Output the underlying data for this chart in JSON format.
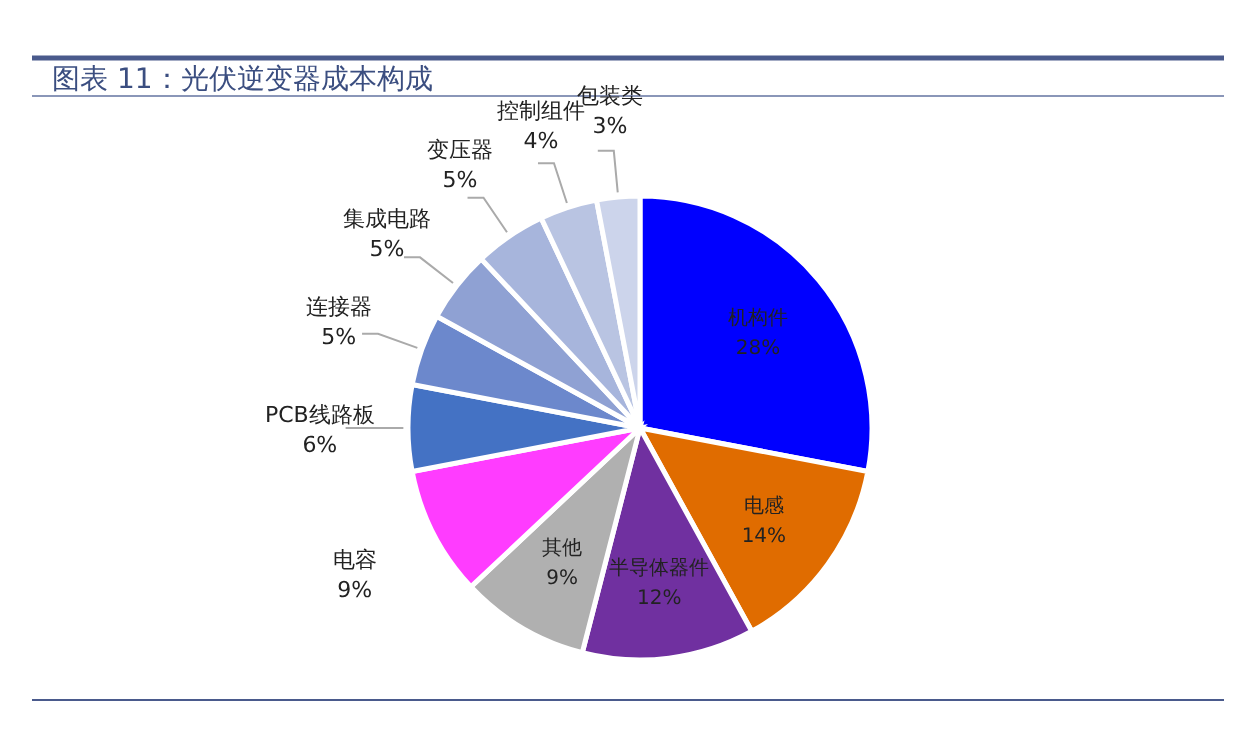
{
  "chart_data": {
    "type": "pie",
    "title": "图表 11：光伏逆变器成本构成",
    "categories": [
      "机构件",
      "电感",
      "半导体器件",
      "其他",
      "电容",
      "PCB线路板",
      "连接器",
      "集成电路",
      "变压器",
      "控制组件",
      "包装类"
    ],
    "values": [
      28,
      14,
      12,
      9,
      9,
      6,
      5,
      5,
      5,
      4,
      3
    ],
    "value_labels": [
      "28%",
      "14%",
      "12%",
      "9%",
      "9%",
      "6%",
      "5%",
      "5%",
      "5%",
      "4%",
      "3%"
    ],
    "colors": [
      "#0000ff",
      "#e06c00",
      "#7030a0",
      "#b0b0b0",
      "#ff3cff",
      "#4472c4",
      "#6c88cc",
      "#8fa1d3",
      "#a7b5dc",
      "#b9c4e2",
      "#ccd4eb"
    ]
  }
}
